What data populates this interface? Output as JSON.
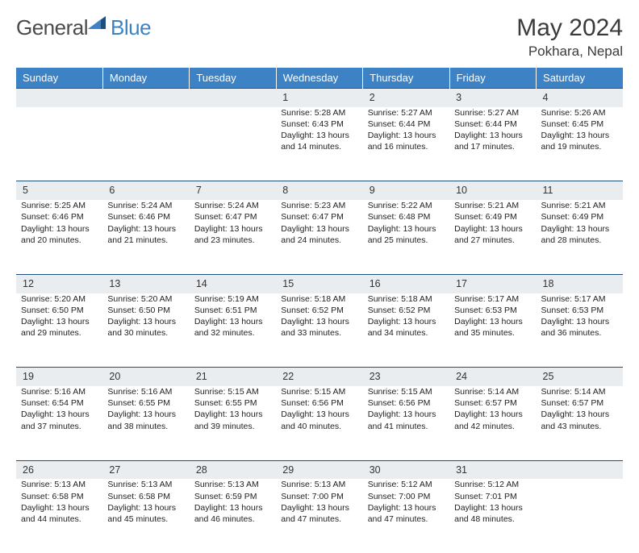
{
  "brand": {
    "part1": "General",
    "part2": "Blue"
  },
  "title": {
    "month": "May 2024",
    "location": "Pokhara, Nepal"
  },
  "colors": {
    "header_bg": "#3d82c4",
    "header_text": "#ffffff",
    "daynum_bg": "#e9edf0",
    "rule": "#1f4e79",
    "brand_grey": "#4a4a4a",
    "brand_blue": "#3d82c4"
  },
  "weekdays": [
    "Sunday",
    "Monday",
    "Tuesday",
    "Wednesday",
    "Thursday",
    "Friday",
    "Saturday"
  ],
  "weeks": [
    {
      "nums": [
        "",
        "",
        "",
        "1",
        "2",
        "3",
        "4"
      ],
      "cells": [
        {
          "sunrise": "",
          "sunset": "",
          "daylight": ""
        },
        {
          "sunrise": "",
          "sunset": "",
          "daylight": ""
        },
        {
          "sunrise": "",
          "sunset": "",
          "daylight": ""
        },
        {
          "sunrise": "Sunrise: 5:28 AM",
          "sunset": "Sunset: 6:43 PM",
          "daylight": "Daylight: 13 hours and 14 minutes."
        },
        {
          "sunrise": "Sunrise: 5:27 AM",
          "sunset": "Sunset: 6:44 PM",
          "daylight": "Daylight: 13 hours and 16 minutes."
        },
        {
          "sunrise": "Sunrise: 5:27 AM",
          "sunset": "Sunset: 6:44 PM",
          "daylight": "Daylight: 13 hours and 17 minutes."
        },
        {
          "sunrise": "Sunrise: 5:26 AM",
          "sunset": "Sunset: 6:45 PM",
          "daylight": "Daylight: 13 hours and 19 minutes."
        }
      ]
    },
    {
      "nums": [
        "5",
        "6",
        "7",
        "8",
        "9",
        "10",
        "11"
      ],
      "cells": [
        {
          "sunrise": "Sunrise: 5:25 AM",
          "sunset": "Sunset: 6:46 PM",
          "daylight": "Daylight: 13 hours and 20 minutes."
        },
        {
          "sunrise": "Sunrise: 5:24 AM",
          "sunset": "Sunset: 6:46 PM",
          "daylight": "Daylight: 13 hours and 21 minutes."
        },
        {
          "sunrise": "Sunrise: 5:24 AM",
          "sunset": "Sunset: 6:47 PM",
          "daylight": "Daylight: 13 hours and 23 minutes."
        },
        {
          "sunrise": "Sunrise: 5:23 AM",
          "sunset": "Sunset: 6:47 PM",
          "daylight": "Daylight: 13 hours and 24 minutes."
        },
        {
          "sunrise": "Sunrise: 5:22 AM",
          "sunset": "Sunset: 6:48 PM",
          "daylight": "Daylight: 13 hours and 25 minutes."
        },
        {
          "sunrise": "Sunrise: 5:21 AM",
          "sunset": "Sunset: 6:49 PM",
          "daylight": "Daylight: 13 hours and 27 minutes."
        },
        {
          "sunrise": "Sunrise: 5:21 AM",
          "sunset": "Sunset: 6:49 PM",
          "daylight": "Daylight: 13 hours and 28 minutes."
        }
      ]
    },
    {
      "nums": [
        "12",
        "13",
        "14",
        "15",
        "16",
        "17",
        "18"
      ],
      "cells": [
        {
          "sunrise": "Sunrise: 5:20 AM",
          "sunset": "Sunset: 6:50 PM",
          "daylight": "Daylight: 13 hours and 29 minutes."
        },
        {
          "sunrise": "Sunrise: 5:20 AM",
          "sunset": "Sunset: 6:50 PM",
          "daylight": "Daylight: 13 hours and 30 minutes."
        },
        {
          "sunrise": "Sunrise: 5:19 AM",
          "sunset": "Sunset: 6:51 PM",
          "daylight": "Daylight: 13 hours and 32 minutes."
        },
        {
          "sunrise": "Sunrise: 5:18 AM",
          "sunset": "Sunset: 6:52 PM",
          "daylight": "Daylight: 13 hours and 33 minutes."
        },
        {
          "sunrise": "Sunrise: 5:18 AM",
          "sunset": "Sunset: 6:52 PM",
          "daylight": "Daylight: 13 hours and 34 minutes."
        },
        {
          "sunrise": "Sunrise: 5:17 AM",
          "sunset": "Sunset: 6:53 PM",
          "daylight": "Daylight: 13 hours and 35 minutes."
        },
        {
          "sunrise": "Sunrise: 5:17 AM",
          "sunset": "Sunset: 6:53 PM",
          "daylight": "Daylight: 13 hours and 36 minutes."
        }
      ]
    },
    {
      "nums": [
        "19",
        "20",
        "21",
        "22",
        "23",
        "24",
        "25"
      ],
      "cells": [
        {
          "sunrise": "Sunrise: 5:16 AM",
          "sunset": "Sunset: 6:54 PM",
          "daylight": "Daylight: 13 hours and 37 minutes."
        },
        {
          "sunrise": "Sunrise: 5:16 AM",
          "sunset": "Sunset: 6:55 PM",
          "daylight": "Daylight: 13 hours and 38 minutes."
        },
        {
          "sunrise": "Sunrise: 5:15 AM",
          "sunset": "Sunset: 6:55 PM",
          "daylight": "Daylight: 13 hours and 39 minutes."
        },
        {
          "sunrise": "Sunrise: 5:15 AM",
          "sunset": "Sunset: 6:56 PM",
          "daylight": "Daylight: 13 hours and 40 minutes."
        },
        {
          "sunrise": "Sunrise: 5:15 AM",
          "sunset": "Sunset: 6:56 PM",
          "daylight": "Daylight: 13 hours and 41 minutes."
        },
        {
          "sunrise": "Sunrise: 5:14 AM",
          "sunset": "Sunset: 6:57 PM",
          "daylight": "Daylight: 13 hours and 42 minutes."
        },
        {
          "sunrise": "Sunrise: 5:14 AM",
          "sunset": "Sunset: 6:57 PM",
          "daylight": "Daylight: 13 hours and 43 minutes."
        }
      ]
    },
    {
      "nums": [
        "26",
        "27",
        "28",
        "29",
        "30",
        "31",
        ""
      ],
      "cells": [
        {
          "sunrise": "Sunrise: 5:13 AM",
          "sunset": "Sunset: 6:58 PM",
          "daylight": "Daylight: 13 hours and 44 minutes."
        },
        {
          "sunrise": "Sunrise: 5:13 AM",
          "sunset": "Sunset: 6:58 PM",
          "daylight": "Daylight: 13 hours and 45 minutes."
        },
        {
          "sunrise": "Sunrise: 5:13 AM",
          "sunset": "Sunset: 6:59 PM",
          "daylight": "Daylight: 13 hours and 46 minutes."
        },
        {
          "sunrise": "Sunrise: 5:13 AM",
          "sunset": "Sunset: 7:00 PM",
          "daylight": "Daylight: 13 hours and 47 minutes."
        },
        {
          "sunrise": "Sunrise: 5:12 AM",
          "sunset": "Sunset: 7:00 PM",
          "daylight": "Daylight: 13 hours and 47 minutes."
        },
        {
          "sunrise": "Sunrise: 5:12 AM",
          "sunset": "Sunset: 7:01 PM",
          "daylight": "Daylight: 13 hours and 48 minutes."
        },
        {
          "sunrise": "",
          "sunset": "",
          "daylight": ""
        }
      ]
    }
  ]
}
